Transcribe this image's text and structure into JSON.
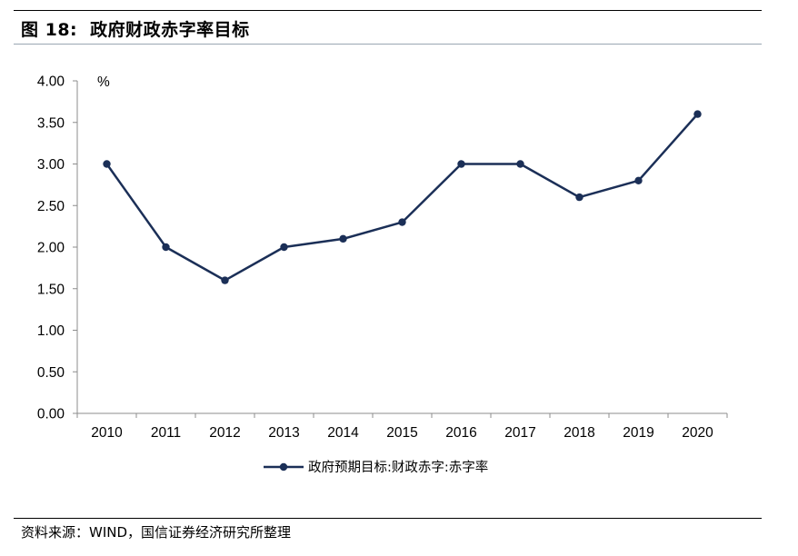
{
  "figure": {
    "number": "图 18:",
    "title": "政府财政赤字率目标",
    "source": "资料来源：WIND，国信证券经济研究所整理"
  },
  "colors": {
    "series": "#1b2f57",
    "axis": "#8c8c8c",
    "rule": "#9aa6b2"
  },
  "chart_data": {
    "type": "line",
    "title": "政府财政赤字率目标",
    "xlabel": "",
    "ylabel": "%",
    "x": [
      "2010",
      "2011",
      "2012",
      "2013",
      "2014",
      "2015",
      "2016",
      "2017",
      "2018",
      "2019",
      "2020"
    ],
    "series": [
      {
        "name": "政府预期目标:财政赤字:赤字率",
        "values": [
          3.0,
          2.0,
          1.6,
          2.0,
          2.1,
          2.3,
          3.0,
          3.0,
          2.6,
          2.8,
          3.6
        ],
        "marker": "circle"
      }
    ],
    "ylim": [
      0,
      4
    ],
    "yticks": [
      "0.00",
      "0.50",
      "1.00",
      "1.50",
      "2.00",
      "2.50",
      "3.00",
      "3.50",
      "4.00"
    ],
    "grid": false,
    "legend": "bottom-center"
  }
}
